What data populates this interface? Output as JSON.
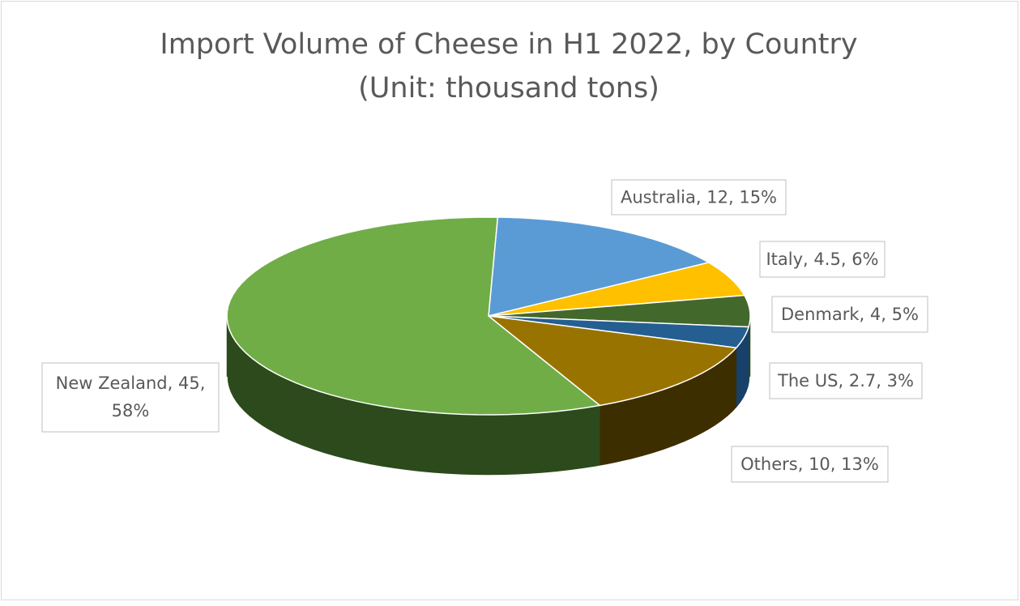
{
  "chart_data": {
    "type": "pie",
    "title": "Import Volume of Cheese in H1 2022, by Country",
    "subtitle": "(Unit: thousand tons)",
    "categories": [
      "Australia",
      "Italy",
      "Denmark",
      "The US",
      "Others",
      "New Zealand"
    ],
    "values": [
      12,
      4.5,
      4,
      2.7,
      10,
      45
    ],
    "percent_labels": [
      "15%",
      "6%",
      "5%",
      "3%",
      "13%",
      "58%"
    ],
    "colors": [
      "#5b9bd5",
      "#ffc000",
      "#43682b",
      "#255e91",
      "#997300",
      "#70ad47"
    ],
    "side_colors": [
      "#3f73a3",
      "#c49400",
      "#2b4a1a",
      "#17406a",
      "#3d2e00",
      "#2c4a1c"
    ]
  }
}
